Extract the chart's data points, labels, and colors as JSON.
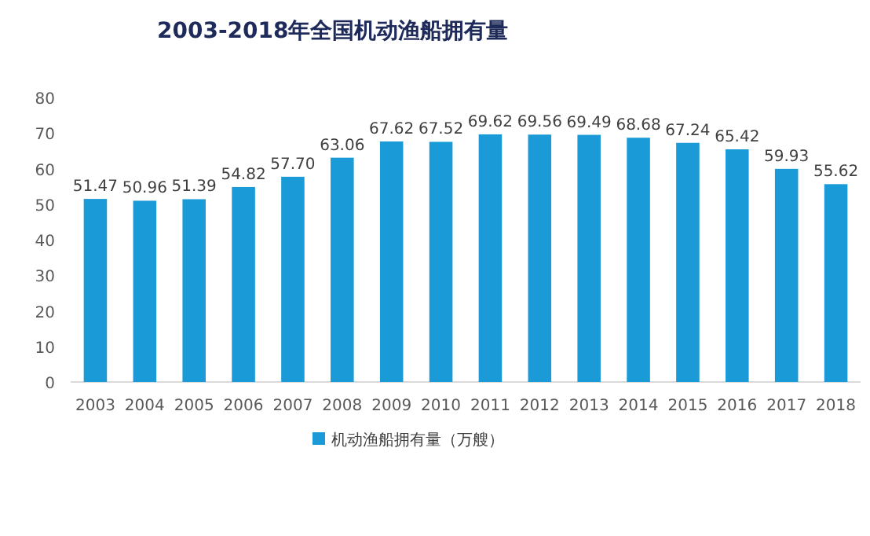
{
  "chart_data": {
    "type": "bar",
    "title": "2003-2018年全国机动渔船拥有量",
    "categories": [
      "2003",
      "2004",
      "2005",
      "2006",
      "2007",
      "2008",
      "2009",
      "2010",
      "2011",
      "2012",
      "2013",
      "2014",
      "2015",
      "2016",
      "2017",
      "2018"
    ],
    "series": [
      {
        "name": "机动渔船拥有量（万艘）",
        "color": "#1a9bd7",
        "values": [
          51.47,
          50.96,
          51.39,
          54.82,
          57.7,
          63.06,
          67.62,
          67.52,
          69.62,
          69.56,
          69.49,
          68.68,
          67.24,
          65.42,
          59.93,
          55.62
        ]
      }
    ],
    "value_labels": [
      "51.47",
      "50.96",
      "51.39",
      "54.82",
      "57.70",
      "63.06",
      "67.62",
      "67.52",
      "69.62",
      "69.56",
      "69.49",
      "68.68",
      "67.24",
      "65.42",
      "59.93",
      "55.62"
    ],
    "ylim": [
      0,
      80
    ],
    "yticks": [
      0,
      10,
      20,
      30,
      40,
      50,
      60,
      70,
      80
    ],
    "legend": "bottom"
  }
}
